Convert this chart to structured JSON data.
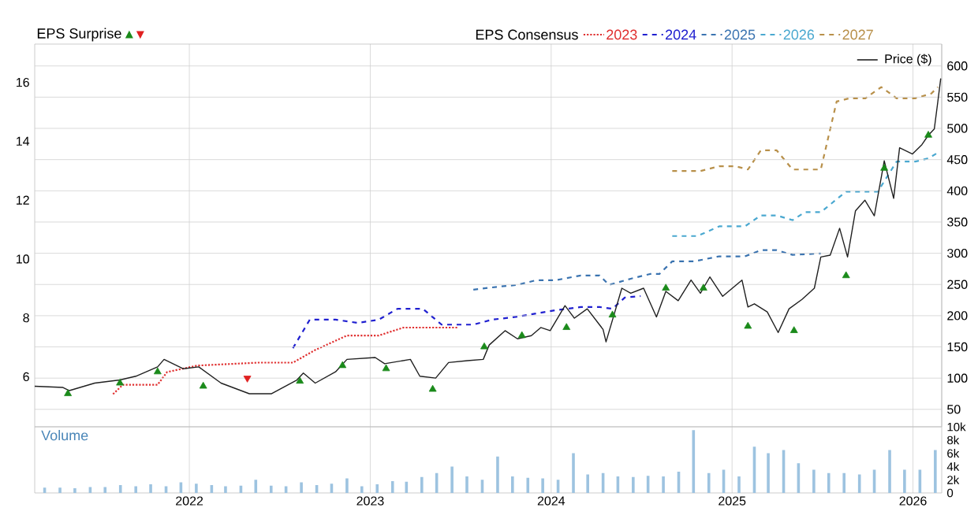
{
  "chart_data": [
    {
      "type": "line",
      "legend_title": "EPS Consensus",
      "annotations": [
        "EPS Surprise"
      ],
      "legend": "top",
      "grid": true,
      "tick_labels": "y",
      "xlim": [
        "2021-02-23",
        "2026-02-28"
      ],
      "xticks": [
        "2022",
        "2023",
        "2024",
        "2025",
        "2026"
      ],
      "ylim": [
        4.3,
        17.3
      ],
      "yticks": [
        6,
        8,
        10,
        12,
        14,
        16
      ],
      "y2lim": [
        22,
        635
      ],
      "y2ticks": [
        50,
        100,
        150,
        200,
        250,
        300,
        350,
        400,
        450,
        500,
        550,
        600
      ],
      "series": [
        {
          "name": "2023",
          "color": "#e03030",
          "line_style": "dotted",
          "x": [
            "2021-07-31",
            "2021-08-20",
            "2021-10-29",
            "2021-11-17",
            "2022-01-17",
            "2022-05-20",
            "2022-07-29",
            "2022-09-12",
            "2022-11-15",
            "2023-01-18",
            "2023-03-09",
            "2023-06-26"
          ],
          "values": [
            5.41,
            5.73,
            5.73,
            6.16,
            6.38,
            6.48,
            6.48,
            6.91,
            7.4,
            7.4,
            7.67,
            7.67
          ]
        },
        {
          "name": "2024",
          "color": "#2020d0",
          "line_style": "dashed",
          "x": [
            "2022-07-29",
            "2022-09-01",
            "2022-10-23",
            "2022-12-07",
            "2023-01-18",
            "2023-02-25",
            "2023-04-17",
            "2023-05-25",
            "2023-07-28",
            "2023-09-04",
            "2023-10-25",
            "2023-12-02",
            "2024-01-10",
            "2024-03-01",
            "2024-04-08",
            "2024-05-04",
            "2024-05-29",
            "2024-06-30"
          ],
          "values": [
            6.97,
            7.94,
            7.94,
            7.83,
            7.94,
            8.31,
            8.31,
            7.77,
            7.77,
            7.94,
            8.04,
            8.15,
            8.26,
            8.37,
            8.37,
            8.31,
            8.69,
            8.74
          ]
        },
        {
          "name": "2025",
          "color": "#3a73b0",
          "line_style": "dashed",
          "x": [
            "2023-07-28",
            "2023-09-17",
            "2023-10-25",
            "2023-12-02",
            "2024-01-10",
            "2024-03-01",
            "2024-04-08",
            "2024-04-27",
            "2024-06-10",
            "2024-07-19",
            "2024-08-07",
            "2024-09-02",
            "2024-10-16",
            "2024-12-06",
            "2025-01-27",
            "2025-02-28",
            "2025-04-01",
            "2025-05-03",
            "2025-06-29"
          ],
          "values": [
            8.96,
            9.06,
            9.12,
            9.28,
            9.28,
            9.44,
            9.44,
            9.12,
            9.33,
            9.49,
            9.49,
            9.92,
            9.92,
            10.09,
            10.09,
            10.3,
            10.3,
            10.14,
            10.19
          ]
        },
        {
          "name": "2026",
          "color": "#4aa8d0",
          "line_style": "dashed",
          "x": [
            "2024-09-02",
            "2024-10-23",
            "2024-12-06",
            "2025-01-27",
            "2025-02-28",
            "2025-04-01",
            "2025-05-03",
            "2025-05-28",
            "2025-06-29",
            "2025-08-19",
            "2025-10-22",
            "2025-11-29",
            "2026-01-06",
            "2026-02-01",
            "2026-02-17"
          ],
          "values": [
            10.78,
            10.78,
            11.11,
            11.11,
            11.48,
            11.48,
            11.32,
            11.59,
            11.59,
            12.29,
            12.29,
            13.31,
            13.31,
            13.42,
            13.58
          ]
        },
        {
          "name": "2027",
          "color": "#b8904a",
          "line_style": "dashed",
          "x": [
            "2024-09-02",
            "2024-10-29",
            "2024-12-06",
            "2025-01-08",
            "2025-02-02",
            "2025-02-28",
            "2025-04-01",
            "2025-05-03",
            "2025-06-29",
            "2025-07-31",
            "2025-08-26",
            "2025-09-27",
            "2025-10-29",
            "2025-11-29",
            "2026-01-06",
            "2026-02-07",
            "2026-02-20"
          ],
          "values": [
            12.99,
            12.99,
            13.15,
            13.15,
            13.04,
            13.69,
            13.69,
            13.04,
            13.04,
            15.35,
            15.46,
            15.46,
            15.84,
            15.46,
            15.46,
            15.62,
            15.84
          ]
        },
        {
          "name": "Price ($)",
          "color": "#202020",
          "axis": "y2",
          "line_style": "solid",
          "x": [
            "2021-02-23",
            "2021-04-21",
            "2021-05-04",
            "2021-06-24",
            "2021-08-14",
            "2021-09-15",
            "2021-10-29",
            "2021-11-11",
            "2021-12-20",
            "2022-01-20",
            "2022-03-06",
            "2022-05-02",
            "2022-06-16",
            "2022-08-06",
            "2022-08-19",
            "2022-09-12",
            "2022-10-23",
            "2022-11-15",
            "2023-01-11",
            "2023-01-30",
            "2023-03-23",
            "2023-04-11",
            "2023-05-13",
            "2023-06-08",
            "2023-07-16",
            "2023-08-17",
            "2023-08-29",
            "2023-09-30",
            "2023-10-25",
            "2023-11-22",
            "2023-12-11",
            "2023-12-30",
            "2024-01-29",
            "2024-02-17",
            "2024-03-14",
            "2024-04-15",
            "2024-04-21",
            "2024-05-23",
            "2024-06-10",
            "2024-07-06",
            "2024-08-01",
            "2024-08-20",
            "2024-09-14",
            "2024-10-10",
            "2024-10-29",
            "2024-11-17",
            "2024-12-13",
            "2025-01-21",
            "2025-02-02",
            "2025-02-15",
            "2025-03-13",
            "2025-04-04",
            "2025-04-26",
            "2025-05-22",
            "2025-06-16",
            "2025-06-29",
            "2025-07-18",
            "2025-08-06",
            "2025-08-22",
            "2025-09-07",
            "2025-09-26",
            "2025-10-15",
            "2025-11-04",
            "2025-11-23",
            "2025-12-05",
            "2025-12-31",
            "2026-01-19",
            "2026-02-01",
            "2026-02-13",
            "2026-02-20",
            "2026-02-26"
          ],
          "values": [
            87,
            85,
            80,
            92,
            97,
            103,
            118,
            130,
            115,
            118,
            92,
            75,
            75,
            97,
            108,
            92,
            110,
            130,
            133,
            123,
            130,
            103,
            100,
            125,
            128,
            130,
            153,
            176,
            163,
            168,
            181,
            176,
            216,
            196,
            211,
            178,
            158,
            244,
            236,
            244,
            198,
            239,
            224,
            257,
            236,
            262,
            231,
            257,
            214,
            219,
            206,
            173,
            211,
            226,
            244,
            294,
            297,
            340,
            294,
            368,
            385,
            360,
            448,
            388,
            469,
            459,
            474,
            489,
            499,
            542,
            580
          ]
        },
        {
          "type": "scatter",
          "marker": "triangle",
          "color": "#1a8a1a",
          "axis": "y2",
          "x": [
            "2021-05-01",
            "2021-08-14",
            "2021-10-29",
            "2022-01-29",
            "2022-08-12",
            "2022-11-06",
            "2023-02-02",
            "2023-05-07",
            "2023-08-19",
            "2023-11-03",
            "2024-02-01",
            "2024-05-04",
            "2024-08-20",
            "2024-11-04",
            "2025-02-02",
            "2025-05-06",
            "2025-08-19",
            "2025-11-04",
            "2026-02-01"
          ],
          "values": [
            75,
            92,
            110,
            87,
            95,
            120,
            115,
            82,
            150,
            168,
            181,
            201,
            244,
            244,
            183,
            176,
            264,
            436,
            489
          ]
        },
        {
          "type": "scatter",
          "marker": "triangle-down",
          "color": "#e02020",
          "axis": "y2",
          "x": [
            "2022-04-28"
          ],
          "values": [
            100
          ]
        }
      ]
    },
    {
      "type": "bar",
      "title": "Volume",
      "color": "#9dc3e0",
      "grid": "x",
      "xlim": [
        "2021-02-23",
        "2026-02-28"
      ],
      "xticks": [
        "2022",
        "2023",
        "2024",
        "2025",
        "2026"
      ],
      "ylim": [
        0,
        10000
      ],
      "yticks": [
        0,
        {
          "value": 2000,
          "label": "2k"
        },
        {
          "value": 4000,
          "label": "4k"
        },
        {
          "value": 6000,
          "label": "6k"
        },
        {
          "value": 8000,
          "label": "8k"
        },
        {
          "value": 10000,
          "label": "10k"
        }
      ],
      "x": [
        "2021-03-15",
        "2021-04-15",
        "2021-05-15",
        "2021-06-15",
        "2021-07-15",
        "2021-08-15",
        "2021-09-15",
        "2021-10-15",
        "2021-11-15",
        "2021-12-15",
        "2022-01-15",
        "2022-02-15",
        "2022-03-15",
        "2022-04-15",
        "2022-05-15",
        "2022-06-15",
        "2022-07-15",
        "2022-08-15",
        "2022-09-15",
        "2022-10-15",
        "2022-11-15",
        "2022-12-15",
        "2023-01-15",
        "2023-02-15",
        "2023-03-15",
        "2023-04-15",
        "2023-05-15",
        "2023-06-15",
        "2023-07-15",
        "2023-08-15",
        "2023-09-15",
        "2023-10-15",
        "2023-11-15",
        "2023-12-15",
        "2024-01-15",
        "2024-02-15",
        "2024-03-15",
        "2024-04-15",
        "2024-05-15",
        "2024-06-15",
        "2024-07-15",
        "2024-08-15",
        "2024-09-15",
        "2024-10-15",
        "2024-11-15",
        "2024-12-15",
        "2025-01-15",
        "2025-02-15",
        "2025-03-15",
        "2025-04-15",
        "2025-05-15",
        "2025-06-15",
        "2025-07-15",
        "2025-08-15",
        "2025-09-15",
        "2025-10-15",
        "2025-11-15",
        "2025-12-15",
        "2026-01-15",
        "2026-02-15"
      ],
      "values": [
        800,
        800,
        700,
        900,
        900,
        1200,
        1000,
        1300,
        1000,
        1600,
        1400,
        1200,
        1000,
        1100,
        2000,
        1100,
        1000,
        1600,
        1200,
        1400,
        2200,
        1000,
        1300,
        1800,
        1700,
        2400,
        3000,
        4000,
        2500,
        2000,
        5500,
        2500,
        2300,
        2200,
        2000,
        6000,
        2800,
        3000,
        2500,
        2400,
        2600,
        2500,
        3200,
        9500,
        3000,
        3500,
        2500,
        7000,
        6000,
        6500,
        4500,
        3500,
        3000,
        3000,
        2800,
        3500,
        6500,
        3500,
        3500,
        6500
      ]
    }
  ]
}
